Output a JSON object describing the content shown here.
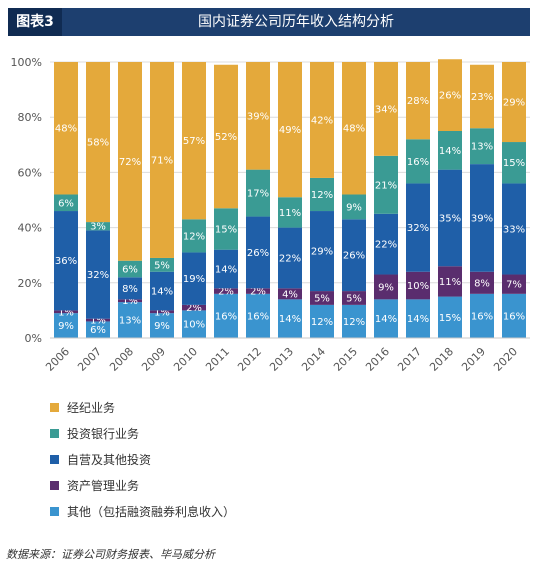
{
  "header": {
    "tag": "图表3",
    "title": "国内证券公司历年收入结构分析"
  },
  "source": "数据来源：证券公司财务报表、毕马威分析",
  "colors": {
    "brokerage": "#e4a93b",
    "investment_banking": "#3a9b94",
    "proprietary": "#1f5fa8",
    "asset_mgmt": "#5a2d6e",
    "other": "#3a94cf"
  },
  "chart_data": {
    "type": "bar",
    "stacked": true,
    "categories": [
      "2006",
      "2007",
      "2008",
      "2009",
      "2010",
      "2011",
      "2012",
      "2013",
      "2014",
      "2015",
      "2016",
      "2017",
      "2018",
      "2019",
      "2020"
    ],
    "ylim": [
      0,
      100
    ],
    "yticks": [
      "0%",
      "20%",
      "40%",
      "60%",
      "80%",
      "100%"
    ],
    "grid": true,
    "legend_position": "bottom-left",
    "series": [
      {
        "key": "other",
        "name": "其他（包括融资融券利息收入）",
        "values": [
          9,
          6,
          13,
          9,
          10,
          16,
          16,
          14,
          12,
          12,
          14,
          14,
          15,
          16,
          16
        ],
        "labels": [
          "9%",
          "6%",
          "13%",
          "9%",
          "10%",
          "16%",
          "16%",
          "14%",
          "12%",
          "12%",
          "14%",
          "14%",
          "15%",
          "16%",
          "16%"
        ]
      },
      {
        "key": "asset_mgmt",
        "name": "资产管理业务",
        "values": [
          1,
          1,
          1,
          1,
          2,
          2,
          2,
          4,
          5,
          5,
          9,
          10,
          11,
          8,
          7
        ],
        "labels": [
          "1%",
          "1%",
          "1%",
          "1%",
          "2%",
          "2%",
          "2%",
          "4%",
          "5%",
          "5%",
          "9%",
          "10%",
          "11%",
          "8%",
          "7%"
        ]
      },
      {
        "key": "proprietary",
        "name": "自营及其他投资",
        "values": [
          36,
          32,
          8,
          14,
          19,
          14,
          26,
          22,
          29,
          26,
          22,
          32,
          35,
          39,
          33
        ],
        "labels": [
          "36%",
          "32%",
          "8%",
          "14%",
          "19%",
          "14%",
          "26%",
          "22%",
          "29%",
          "26%",
          "22%",
          "32%",
          "35%",
          "39%",
          "33%"
        ]
      },
      {
        "key": "investment_banking",
        "name": "投资银行业务",
        "values": [
          6,
          3,
          6,
          5,
          12,
          15,
          17,
          11,
          12,
          9,
          21,
          16,
          14,
          13,
          15
        ],
        "labels": [
          "6%",
          "3%",
          "6%",
          "5%",
          "12%",
          "15%",
          "17%",
          "11%",
          "12%",
          "9%",
          "21%",
          "16%",
          "14%",
          "13%",
          "15%"
        ]
      },
      {
        "key": "brokerage",
        "name": "经纪业务",
        "values": [
          48,
          58,
          72,
          71,
          57,
          52,
          39,
          49,
          42,
          48,
          34,
          28,
          26,
          23,
          29
        ],
        "labels": [
          "48%",
          "58%",
          "72%",
          "71%",
          "57%",
          "52%",
          "39%",
          "49%",
          "42%",
          "48%",
          "34%",
          "28%",
          "26%",
          "23%",
          "29%"
        ]
      }
    ],
    "legend_order": [
      "brokerage",
      "investment_banking",
      "proprietary",
      "asset_mgmt",
      "other"
    ]
  }
}
